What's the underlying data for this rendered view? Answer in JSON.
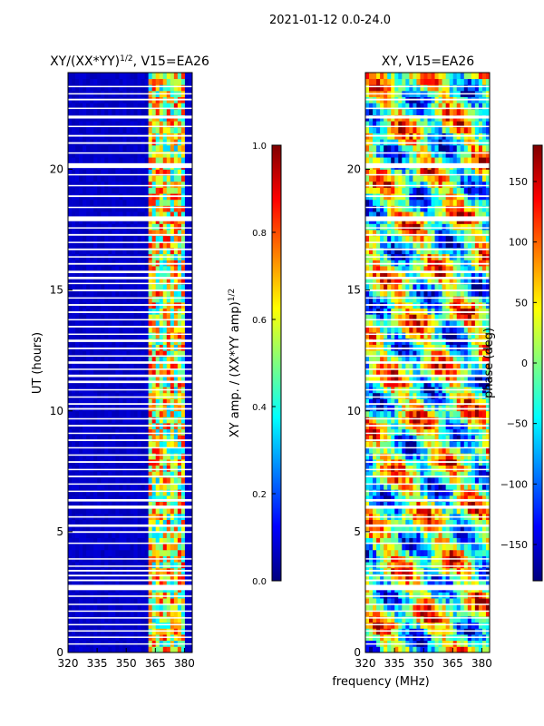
{
  "figure": {
    "suptitle": "2021-01-12 0.0-24.0",
    "xlabel": "frequency (MHz)"
  },
  "colors": {
    "jet": [
      "#00007f",
      "#0000ff",
      "#007fff",
      "#00ffff",
      "#7fff7f",
      "#ffff00",
      "#ff7f00",
      "#ff0000",
      "#7f0000"
    ],
    "background": "#ffffff"
  },
  "chart_data": [
    {
      "type": "heatmap",
      "title": "XY/(XX*YY)",
      "title_exp": "1/2",
      "title_suffix": ", V15=EA26",
      "xlabel": "",
      "ylabel": "UT (hours)",
      "xlim": [
        320,
        384
      ],
      "ylim": [
        0,
        24
      ],
      "xticks": [
        320,
        335,
        350,
        365,
        380
      ],
      "yticks": [
        0,
        5,
        10,
        15,
        20
      ],
      "colorbar": {
        "label": "XY amp. / (XX*YY amp)",
        "label_exp": "1/2",
        "range": [
          0.0,
          1.0
        ],
        "ticks": [
          "0.0",
          "0.2",
          "0.4",
          "0.6",
          "0.8",
          "1.0"
        ]
      },
      "active_band_MHz": [
        361,
        381
      ],
      "background_value": 0.05,
      "band_value_range": [
        0.3,
        0.9
      ]
    },
    {
      "type": "heatmap",
      "title": "XY, V15=EA26",
      "xlabel": "",
      "ylabel": "",
      "xlim": [
        320,
        384
      ],
      "ylim": [
        0,
        24
      ],
      "xticks": [
        320,
        335,
        350,
        365,
        380
      ],
      "yticks": [
        0,
        5,
        10,
        15,
        20
      ],
      "colorbar": {
        "label": "phase (deg)",
        "range": [
          -180,
          180
        ],
        "ticks": [
          "−150",
          "−100",
          "−50",
          "0",
          "50",
          "100",
          "150"
        ],
        "tick_values": [
          -150,
          -100,
          -50,
          0,
          50,
          100,
          150
        ]
      }
    }
  ],
  "flagged_rows_UT": [
    [
      0.34,
      0.38
    ],
    [
      0.62,
      0.66
    ],
    [
      0.88,
      0.92
    ],
    [
      1.14,
      1.18
    ],
    [
      1.42,
      1.46
    ],
    [
      1.7,
      1.74
    ],
    [
      1.98,
      2.02
    ],
    [
      2.3,
      2.36
    ],
    [
      2.58,
      2.8
    ],
    [
      2.95,
      3.02
    ],
    [
      3.15,
      3.22
    ],
    [
      3.35,
      3.42
    ],
    [
      3.55,
      3.6
    ],
    [
      3.85,
      3.9
    ],
    [
      4.5,
      4.55
    ],
    [
      4.95,
      5.02
    ],
    [
      5.2,
      5.3
    ],
    [
      5.58,
      5.64
    ],
    [
      5.95,
      6.08
    ],
    [
      6.25,
      6.35
    ],
    [
      6.65,
      6.7
    ],
    [
      6.95,
      7.0
    ],
    [
      7.25,
      7.32
    ],
    [
      7.55,
      7.6
    ],
    [
      7.85,
      7.92
    ],
    [
      8.15,
      8.2
    ],
    [
      8.45,
      8.5
    ],
    [
      8.75,
      8.82
    ],
    [
      9.05,
      9.1
    ],
    [
      9.35,
      9.42
    ],
    [
      9.65,
      9.7
    ],
    [
      10.05,
      10.12
    ],
    [
      10.25,
      10.32
    ],
    [
      10.55,
      10.6
    ],
    [
      10.85,
      10.9
    ],
    [
      11.15,
      11.25
    ],
    [
      11.4,
      11.5
    ],
    [
      11.7,
      11.75
    ],
    [
      11.95,
      12.05
    ],
    [
      12.25,
      12.3
    ],
    [
      12.55,
      12.62
    ],
    [
      12.85,
      12.95
    ],
    [
      13.15,
      13.2
    ],
    [
      13.45,
      13.52
    ],
    [
      13.75,
      13.8
    ],
    [
      14.05,
      14.12
    ],
    [
      14.35,
      14.42
    ],
    [
      14.65,
      14.7
    ],
    [
      14.95,
      15.02
    ],
    [
      15.25,
      15.3
    ],
    [
      15.45,
      15.55
    ],
    [
      15.7,
      15.8
    ],
    [
      16.05,
      16.12
    ],
    [
      16.35,
      16.4
    ],
    [
      16.65,
      16.72
    ],
    [
      16.95,
      17.0
    ],
    [
      17.25,
      17.32
    ],
    [
      17.55,
      17.6
    ],
    [
      17.85,
      18.05
    ],
    [
      18.4,
      18.45
    ],
    [
      18.85,
      18.92
    ],
    [
      19.3,
      19.35
    ],
    [
      19.75,
      19.8
    ],
    [
      20.05,
      20.25
    ],
    [
      20.65,
      20.7
    ],
    [
      21.05,
      21.12
    ],
    [
      21.35,
      21.42
    ],
    [
      21.75,
      21.8
    ],
    [
      22.1,
      22.22
    ],
    [
      22.5,
      22.55
    ],
    [
      22.85,
      22.92
    ],
    [
      23.1,
      23.15
    ],
    [
      23.4,
      23.45
    ]
  ]
}
